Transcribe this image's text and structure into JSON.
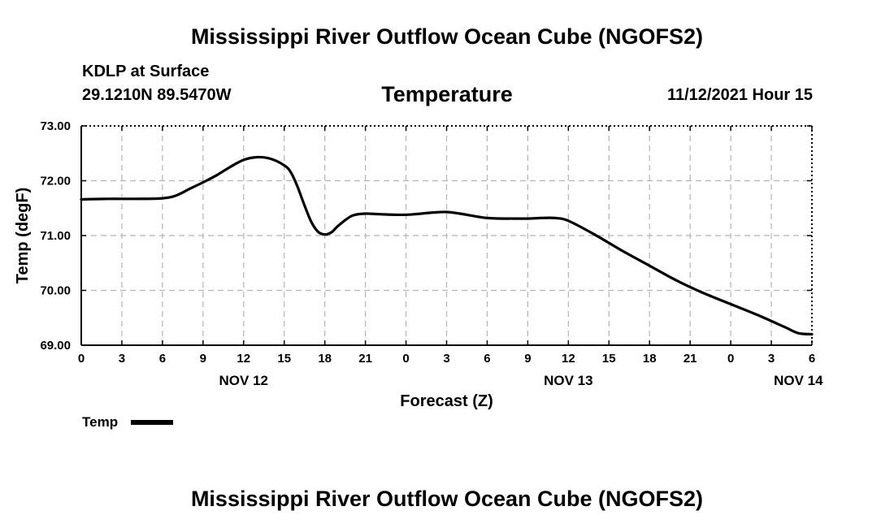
{
  "header": {
    "title": "Mississippi River Outflow Ocean Cube (NGOFS2)",
    "station": "KDLP at Surface",
    "coords": "29.1210N  89.5470W",
    "chart_title": "Temperature",
    "timestamp": "11/12/2021 Hour 15",
    "footer_title": "Mississippi River Outflow Ocean Cube (NGOFS2)"
  },
  "legend": {
    "label": "Temp"
  },
  "chart_data": {
    "type": "line",
    "title": "Temperature",
    "xlabel": "Forecast (Z)",
    "ylabel": "Temp (degF)",
    "xlim": [
      0,
      54
    ],
    "ylim": [
      69.0,
      73.0
    ],
    "grid": true,
    "legend_position": "bottom-left",
    "x_ticks": [
      0,
      3,
      6,
      9,
      12,
      15,
      18,
      21,
      24,
      27,
      30,
      33,
      36,
      39,
      42,
      45,
      48,
      51,
      54
    ],
    "x_tick_labels": [
      "0",
      "3",
      "6",
      "9",
      "12",
      "15",
      "18",
      "21",
      "0",
      "3",
      "6",
      "9",
      "12",
      "15",
      "18",
      "21",
      "0",
      "3",
      "6"
    ],
    "y_ticks": [
      69.0,
      70.0,
      71.0,
      72.0,
      73.0
    ],
    "y_tick_labels": [
      "69.00",
      "70.00",
      "71.00",
      "72.00",
      "73.00"
    ],
    "day_labels": [
      {
        "x": 12,
        "label": "NOV 12"
      },
      {
        "x": 36,
        "label": "NOV 13"
      },
      {
        "x": 53,
        "label": "NOV 14"
      }
    ],
    "series": [
      {
        "name": "Temp",
        "color": "#000000",
        "x": [
          0,
          2,
          4,
          6,
          7,
          8,
          9,
          10,
          11,
          12,
          13,
          14,
          15,
          15.5,
          16,
          16.5,
          17,
          17.5,
          18,
          18.5,
          19,
          20,
          21,
          22,
          24,
          26,
          27,
          28,
          30,
          32,
          33,
          34,
          35,
          36,
          38,
          40,
          42,
          44,
          46,
          48,
          50,
          52,
          53,
          54
        ],
        "y": [
          71.66,
          71.67,
          71.67,
          71.68,
          71.73,
          71.85,
          71.97,
          72.1,
          72.25,
          72.38,
          72.43,
          72.4,
          72.28,
          72.15,
          71.88,
          71.55,
          71.25,
          71.07,
          71.02,
          71.06,
          71.18,
          71.36,
          71.4,
          71.39,
          71.38,
          71.42,
          71.43,
          71.4,
          71.32,
          71.31,
          71.31,
          71.32,
          71.32,
          71.27,
          71.01,
          70.72,
          70.45,
          70.18,
          69.95,
          69.75,
          69.55,
          69.33,
          69.22,
          69.2
        ]
      }
    ]
  }
}
